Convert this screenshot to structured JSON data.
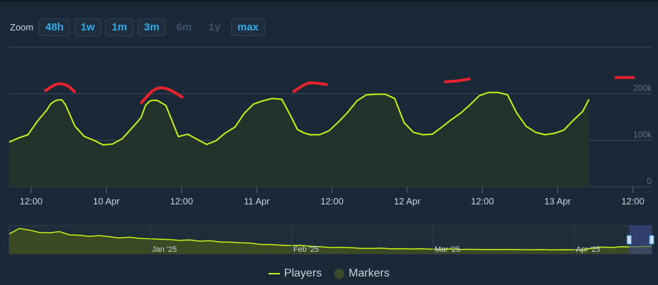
{
  "zoom": {
    "label": "Zoom",
    "buttons": [
      {
        "label": "48h",
        "enabled": true
      },
      {
        "label": "1w",
        "enabled": true
      },
      {
        "label": "1m",
        "enabled": true
      },
      {
        "label": "3m",
        "enabled": true
      },
      {
        "label": "6m",
        "enabled": false
      },
      {
        "label": "1y",
        "enabled": false
      },
      {
        "label": "max",
        "enabled": true
      }
    ]
  },
  "legend": {
    "players_label": "Players",
    "markers_label": "Markers"
  },
  "colors": {
    "background": "#1b2838",
    "series": "#c8f216",
    "annotation": "#e8232e",
    "grid": "#3a4b5c",
    "axis_text": "#c6d4df",
    "navigator_mask": "#3a4a8a"
  },
  "chart_data": {
    "type": "line",
    "series": [
      {
        "name": "Players",
        "x": [
          0,
          1.5,
          3,
          4.5,
          6,
          6.6,
          7.2,
          7.8,
          8.4,
          9,
          10.5,
          12,
          13.5,
          15,
          16.5,
          18,
          19.5,
          21,
          21.8,
          22.4,
          22.8,
          23.6,
          25,
          27,
          28.5,
          30,
          31.5,
          33,
          34.5,
          36,
          37.5,
          39,
          40.5,
          42,
          43.5,
          45,
          46,
          47,
          48,
          49.5,
          51,
          52.5,
          54,
          55.5,
          57,
          58.5,
          60,
          61.5,
          63,
          64.5,
          66,
          67.5,
          69,
          70.5,
          72,
          73.5,
          75,
          76.5,
          78,
          79.5,
          81,
          82.5,
          84,
          85.5,
          87,
          88.5,
          90,
          91.5,
          92.5
        ],
        "values": [
          96,
          105,
          112,
          141,
          165,
          178,
          184,
          187,
          187,
          176,
          130,
          108,
          100,
          90,
          92,
          103,
          125,
          148,
          176,
          184,
          186,
          186,
          175,
          108,
          113,
          102,
          91,
          99,
          116,
          128,
          158,
          178,
          185,
          190,
          188,
          150,
          123,
          116,
          112,
          112,
          120,
          139,
          160,
          185,
          198,
          199,
          199,
          190,
          138,
          117,
          112,
          113,
          128,
          144,
          158,
          176,
          196,
          203,
          203,
          198,
          158,
          130,
          117,
          112,
          115,
          122,
          143,
          162,
          188
        ]
      }
    ],
    "x_ticks": [
      {
        "x": 3.5,
        "label": "12:00"
      },
      {
        "x": 15.5,
        "label": "10 Apr"
      },
      {
        "x": 27.5,
        "label": "12:00"
      },
      {
        "x": 39.5,
        "label": "11 Apr"
      },
      {
        "x": 51.5,
        "label": "12:00"
      },
      {
        "x": 63.5,
        "label": "12 Apr"
      },
      {
        "x": 75.5,
        "label": "12:00"
      },
      {
        "x": 87.5,
        "label": "13 Apr"
      },
      {
        "x": 99.5,
        "label": "12:00"
      }
    ],
    "x_domain": [
      0,
      102.5
    ],
    "y_ticks": [
      {
        "value": 0,
        "label": "0"
      },
      {
        "value": 100,
        "label": "100k"
      },
      {
        "value": 200,
        "label": "200k"
      }
    ],
    "ylim": [
      0,
      300
    ],
    "grid": true,
    "legend_position": "bottom-center",
    "annotations": [
      {
        "x": [
          5.8,
          7.6,
          9.2,
          10.4
        ],
        "y": [
          207,
          223,
          220,
          205
        ]
      },
      {
        "x": [
          21.1,
          23.3,
          25.3,
          27.6
        ],
        "y": [
          181,
          214,
          212,
          193
        ]
      },
      {
        "x": [
          45.4,
          47.4,
          48.6,
          50.6
        ],
        "y": [
          205,
          223,
          224,
          220
        ]
      },
      {
        "x": [
          69.6,
          71.8,
          73.4
        ],
        "y": [
          226,
          228,
          232
        ]
      },
      {
        "x": [
          96.8,
          99.6
        ],
        "y": [
          235,
          235
        ]
      }
    ],
    "navigator": {
      "tick_labels": [
        {
          "pos": 0.22,
          "label": "Jan '25"
        },
        {
          "pos": 0.44,
          "label": "Feb '25"
        },
        {
          "pos": 0.66,
          "label": "Mar '25"
        },
        {
          "pos": 0.88,
          "label": "Apr '25"
        }
      ],
      "values": [
        250,
        320,
        300,
        270,
        265,
        280,
        240,
        235,
        220,
        230,
        215,
        200,
        210,
        195,
        190,
        185,
        180,
        170,
        175,
        160,
        165,
        150,
        148,
        140,
        135,
        120,
        118,
        110,
        105,
        108,
        95,
        90,
        80,
        82,
        78,
        70,
        68,
        72,
        65,
        66,
        62,
        64,
        60,
        58,
        62,
        56,
        58,
        55,
        54,
        55,
        56,
        53,
        52,
        54,
        50,
        52,
        51,
        50,
        70,
        85,
        80,
        90,
        88,
        92,
        95
      ],
      "selection": [
        0.965,
        1.0
      ]
    }
  }
}
